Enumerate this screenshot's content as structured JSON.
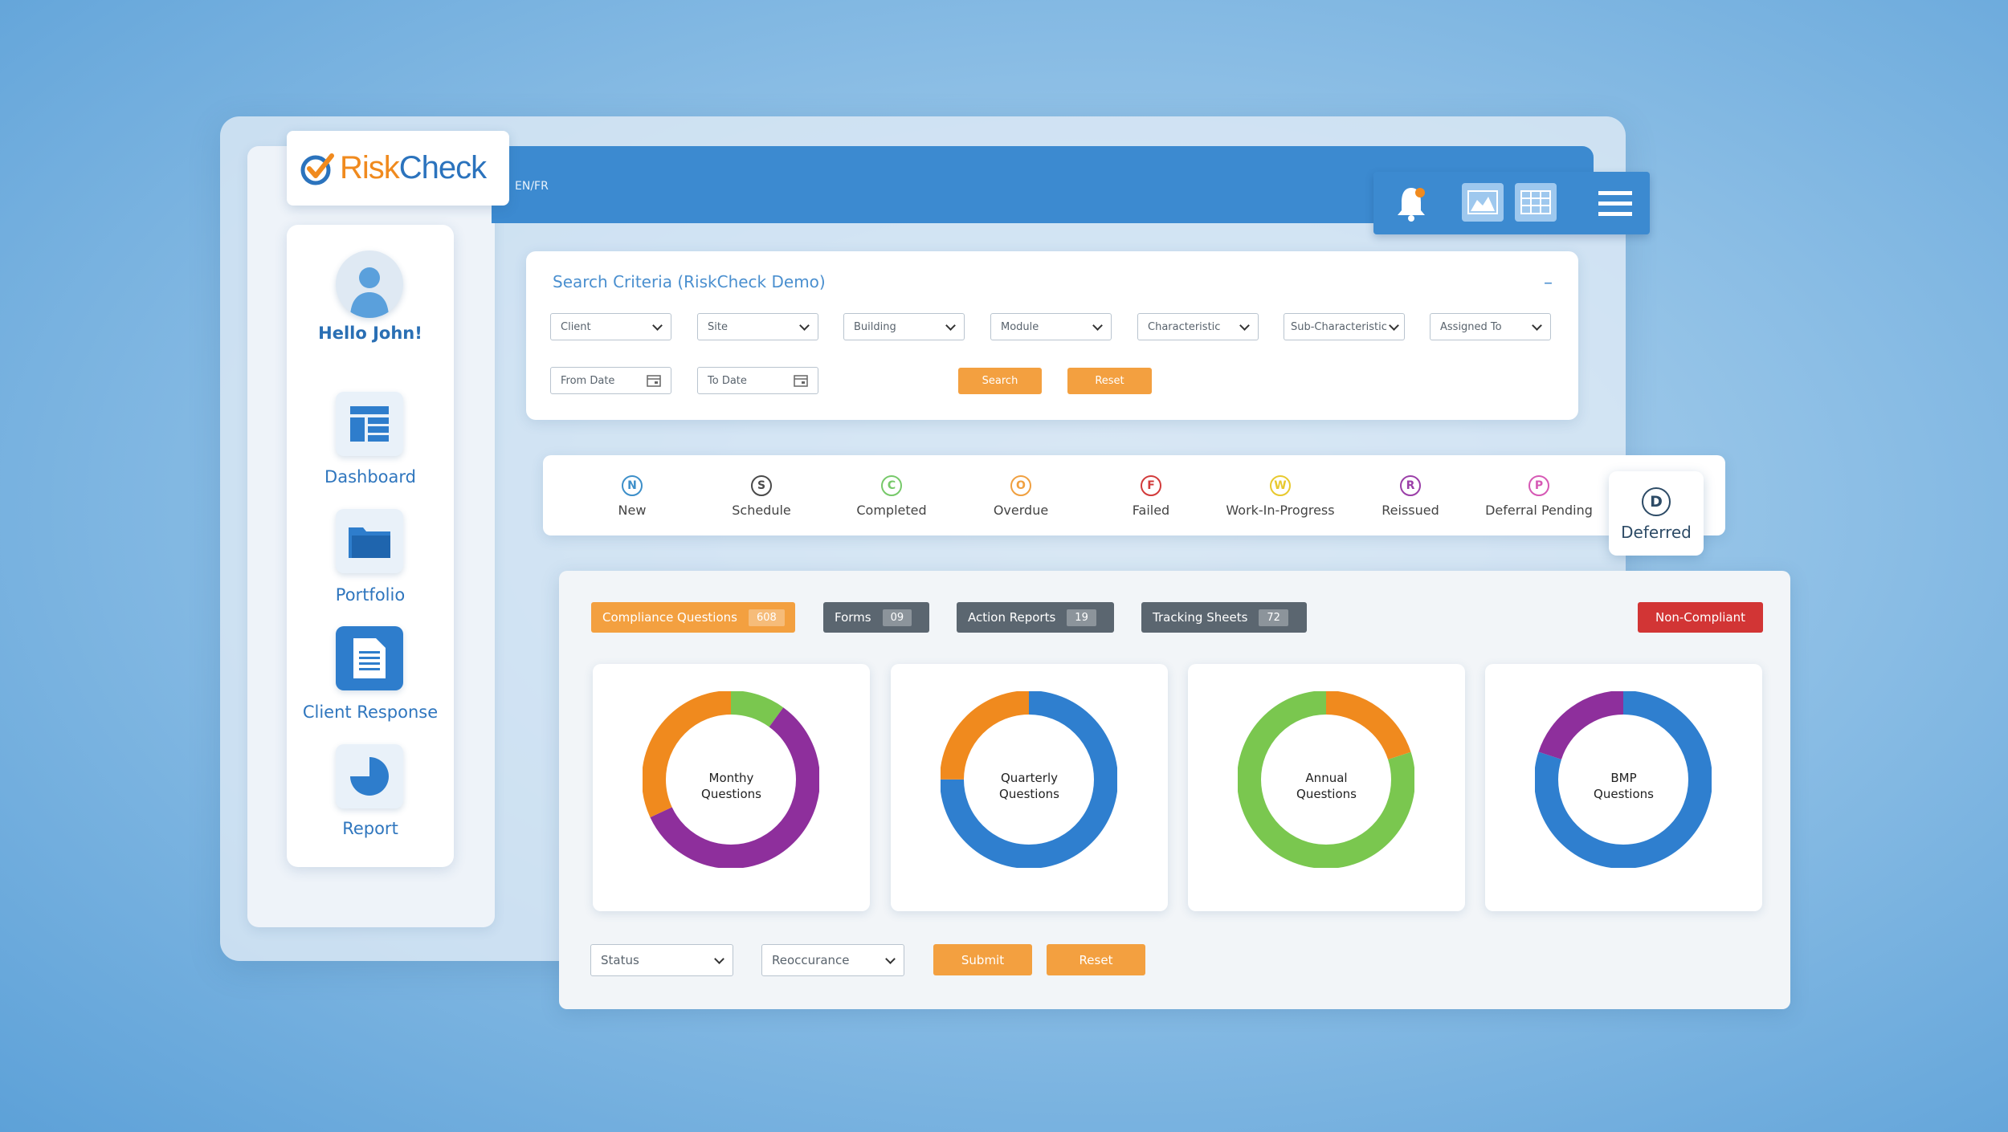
{
  "brand": {
    "logo_text_risk": "Risk",
    "logo_text_check": "Check",
    "language": "EN/FR"
  },
  "toolbar": {
    "bell_icon": "bell-icon",
    "chart_icon": "area-chart-icon",
    "grid_icon": "table-grid-icon",
    "menu_icon": "hamburger-menu-icon"
  },
  "sidebar": {
    "greeting": "Hello John!",
    "items": [
      {
        "label": "Dashboard",
        "icon": "dashboard-icon"
      },
      {
        "label": "Portfolio",
        "icon": "folder-icon"
      },
      {
        "label": "Client Response",
        "icon": "document-icon"
      },
      {
        "label": "Report",
        "icon": "pie-chart-icon"
      }
    ]
  },
  "search": {
    "title": "Search Criteria (RiskCheck Demo)",
    "collapse_symbol": "–",
    "selects": [
      "Client",
      "Site",
      "Building",
      "Module",
      "Characteristic",
      "Sub-Characteristic",
      "Assigned To"
    ],
    "from_date": "From Date",
    "to_date": "To Date",
    "search_button": "Search",
    "reset_button": "Reset"
  },
  "statuses": [
    {
      "letter": "N",
      "label": "New",
      "color": "#3d8fc9"
    },
    {
      "letter": "S",
      "label": "Schedule",
      "color": "#4a4a4a"
    },
    {
      "letter": "C",
      "label": "Completed",
      "color": "#77c96a"
    },
    {
      "letter": "O",
      "label": "Overdue",
      "color": "#f0a040"
    },
    {
      "letter": "F",
      "label": "Failed",
      "color": "#d23b3b"
    },
    {
      "letter": "W",
      "label": "Work-In-Progress",
      "color": "#e8c92e"
    },
    {
      "letter": "R",
      "label": "Reissued",
      "color": "#9b3fa8"
    },
    {
      "letter": "P",
      "label": "Deferral Pending",
      "color": "#d659b5"
    },
    {
      "letter": "D",
      "label": "Deferred",
      "color": "#2d4b66"
    }
  ],
  "tabs": [
    {
      "label": "Compliance Questions",
      "count": "608",
      "color": "#f3a040"
    },
    {
      "label": "Forms",
      "count": "09",
      "color": "#5b6670"
    },
    {
      "label": "Action Reports",
      "count": "19",
      "color": "#5b6670"
    },
    {
      "label": "Tracking Sheets",
      "count": "72",
      "color": "#5b6670"
    }
  ],
  "non_compliant_button": "Non-Compliant",
  "colors": {
    "orange": "#f08a1e",
    "green": "#7ac74f",
    "purple": "#8e2f9c",
    "blue": "#2f7fcf",
    "red": "#d23535"
  },
  "chart_data": [
    {
      "type": "pie",
      "title_lines": [
        "Monthy",
        "Questions"
      ],
      "slices": [
        {
          "color": "#7ac74f",
          "value": 0.1
        },
        {
          "color": "#8e2f9c",
          "value": 0.58
        },
        {
          "color": "#f08a1e",
          "value": 0.32
        }
      ]
    },
    {
      "type": "pie",
      "title_lines": [
        "Quarterly",
        "Questions"
      ],
      "slices": [
        {
          "color": "#2f7fcf",
          "value": 0.75
        },
        {
          "color": "#f08a1e",
          "value": 0.25
        }
      ]
    },
    {
      "type": "pie",
      "title_lines": [
        "Annual",
        "Questions"
      ],
      "slices": [
        {
          "color": "#f08a1e",
          "value": 0.2
        },
        {
          "color": "#7ac74f",
          "value": 0.8
        }
      ]
    },
    {
      "type": "pie",
      "title_lines": [
        "BMP",
        "Questions"
      ],
      "slices": [
        {
          "color": "#2f7fcf",
          "value": 0.8
        },
        {
          "color": "#8e2f9c",
          "value": 0.2
        }
      ]
    }
  ],
  "footer": {
    "status_select": "Status",
    "reoccurance_select": "Reoccurance",
    "submit_button": "Submit",
    "reset_button": "Reset"
  }
}
